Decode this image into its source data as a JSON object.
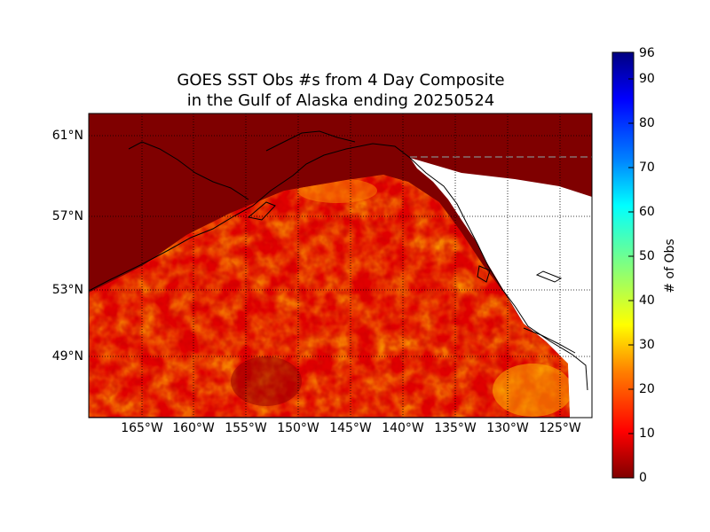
{
  "title_line1": "GOES SST Obs #s from 4 Day Composite",
  "title_line2": "in the Gulf of Alaska ending 20250524",
  "lat_labels": [
    "61°N",
    "57°N",
    "53°N",
    "49°N"
  ],
  "lon_labels": [
    "165°W",
    "160°W",
    "155°W",
    "150°W",
    "145°W",
    "140°W",
    "135°W",
    "130°W",
    "125°W"
  ],
  "colorbar": {
    "label": "# of Obs",
    "min": 0,
    "max": 96,
    "ticks": [
      0,
      10,
      20,
      30,
      40,
      50,
      60,
      70,
      80,
      90,
      96
    ],
    "colormap": [
      "#800000",
      "#ff0000",
      "#ff8000",
      "#ffff00",
      "#80ff80",
      "#00ffff",
      "#0080ff",
      "#0000ff",
      "#000080"
    ]
  },
  "colors": {
    "land": "#ffffff",
    "no_data": "#7f0000",
    "coastline": "#000000",
    "grid": "#000000"
  }
}
